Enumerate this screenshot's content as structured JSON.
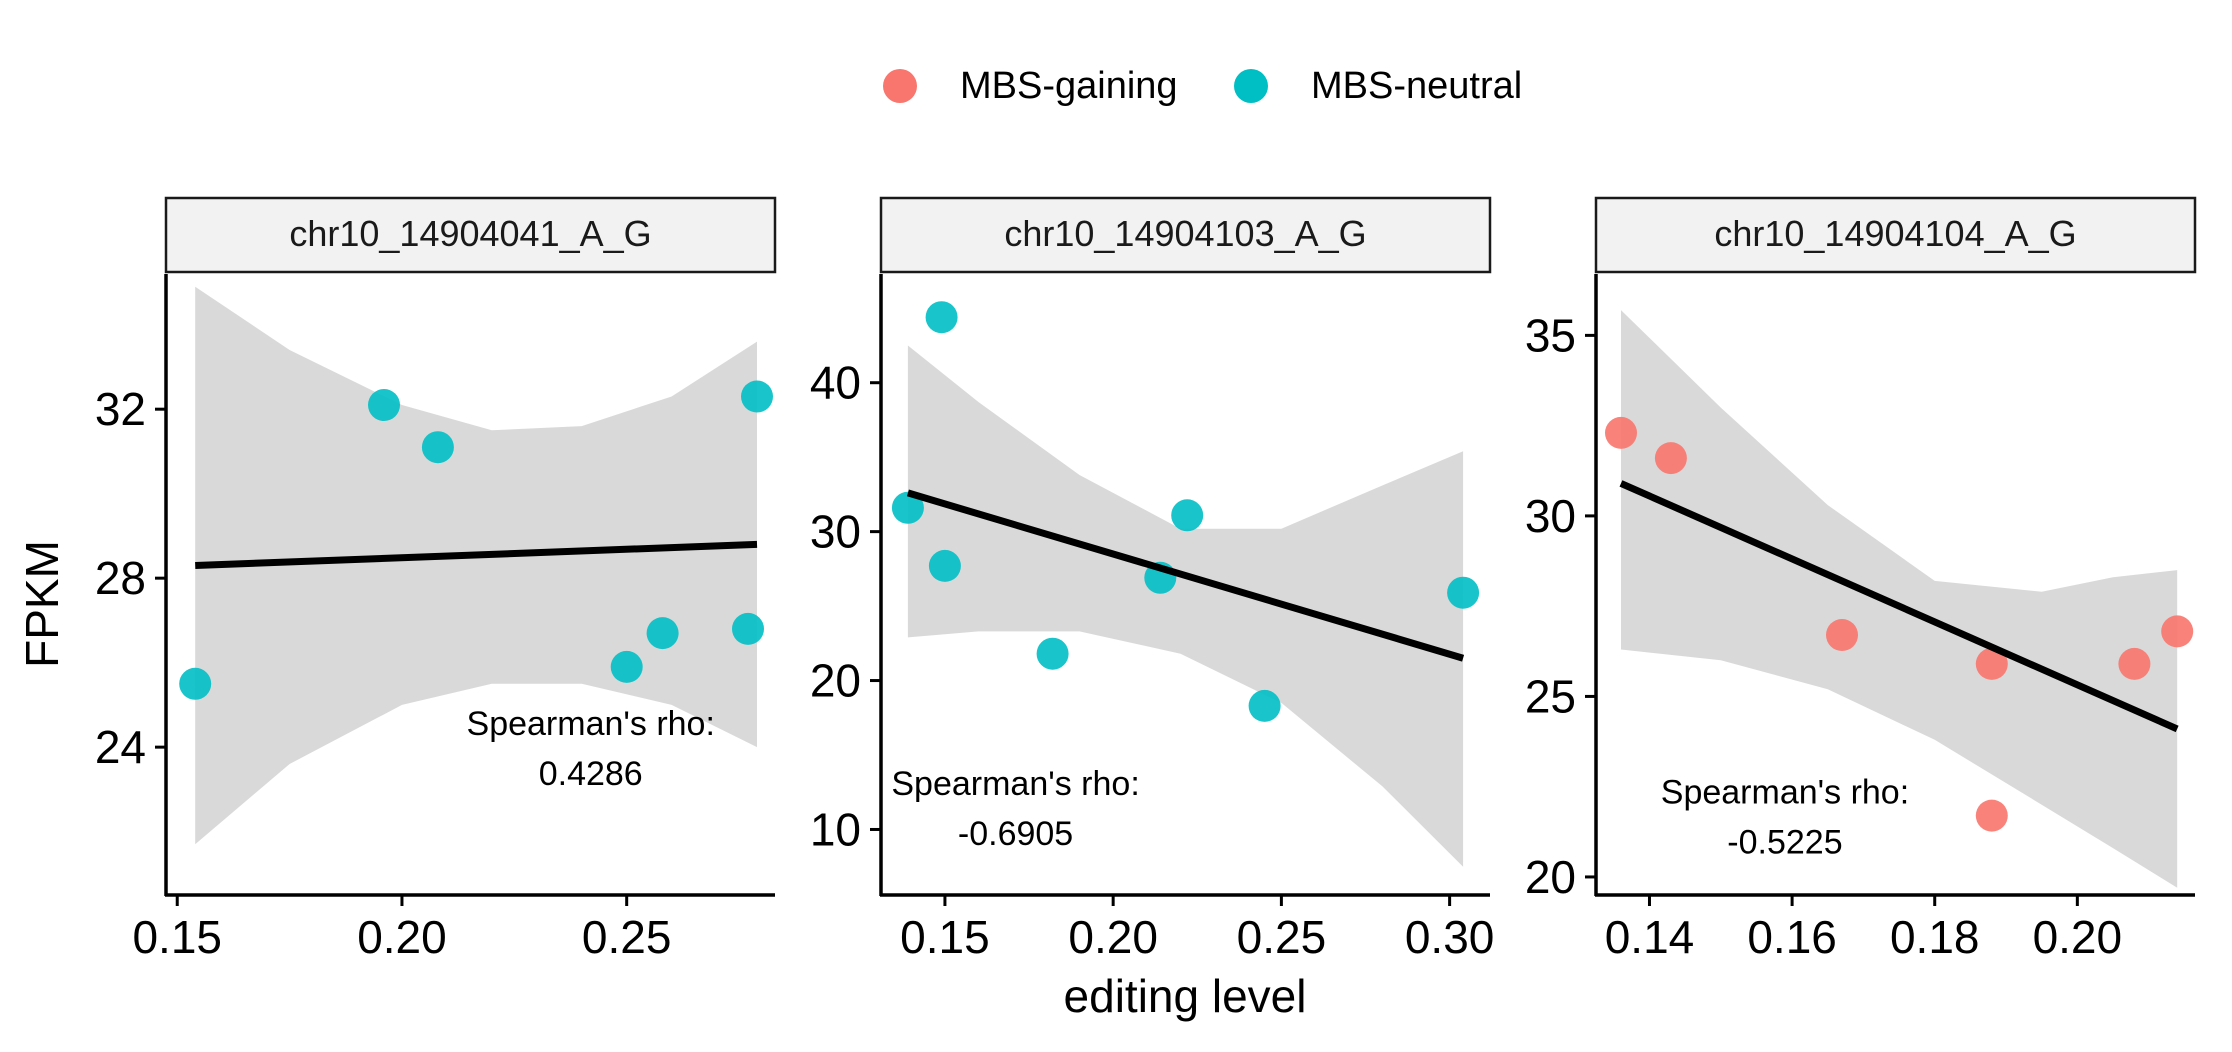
{
  "colors": {
    "mbs_gaining": "#F8766D",
    "mbs_neutral": "#00BFC4",
    "ribbon": "#D9D9D9",
    "strip_fill": "#F2F2F2",
    "fit_line": "#000000"
  },
  "legend": {
    "items": [
      {
        "label": "MBS-gaining",
        "group": "gaining"
      },
      {
        "label": "MBS-neutral",
        "group": "neutral"
      }
    ]
  },
  "axis": {
    "y_title": "FPKM",
    "x_title": "editing level"
  },
  "chart_data": [
    {
      "type": "scatter",
      "title": "chr10_14904041_A_G",
      "xlim": [
        0.1475,
        0.283
      ],
      "ylim": [
        20.5,
        35.2
      ],
      "xticks": [
        0.15,
        0.2,
        0.25
      ],
      "xtick_labels": [
        "0.15",
        "0.20",
        "0.25"
      ],
      "yticks": [
        24,
        28,
        32
      ],
      "ytick_labels": [
        "24",
        "28",
        "32"
      ],
      "points": [
        {
          "x": 0.154,
          "y": 25.5,
          "group": "neutral"
        },
        {
          "x": 0.196,
          "y": 32.1,
          "group": "neutral"
        },
        {
          "x": 0.208,
          "y": 31.1,
          "group": "neutral"
        },
        {
          "x": 0.25,
          "y": 25.9,
          "group": "neutral"
        },
        {
          "x": 0.258,
          "y": 26.7,
          "group": "neutral"
        },
        {
          "x": 0.277,
          "y": 26.8,
          "group": "neutral"
        },
        {
          "x": 0.279,
          "y": 32.3,
          "group": "neutral"
        }
      ],
      "fit": {
        "x": [
          0.154,
          0.279
        ],
        "y": [
          28.3,
          28.8
        ]
      },
      "ci_band": {
        "x": [
          0.154,
          0.175,
          0.2,
          0.22,
          0.24,
          0.26,
          0.279
        ],
        "lower": [
          21.7,
          23.6,
          25.0,
          25.5,
          25.5,
          25.0,
          24.0
        ],
        "upper": [
          34.9,
          33.4,
          32.1,
          31.5,
          31.6,
          32.3,
          33.6
        ]
      },
      "annotation": {
        "label": "Spearman's rho:",
        "value": "0.4286",
        "at": {
          "x": 0.242,
          "y": 24.0
        }
      }
    },
    {
      "type": "scatter",
      "title": "chr10_14904103_A_G",
      "xlim": [
        0.131,
        0.312
      ],
      "ylim": [
        5.6,
        47.3
      ],
      "xticks": [
        0.15,
        0.2,
        0.25,
        0.3
      ],
      "xtick_labels": [
        "0.15",
        "0.20",
        "0.25",
        "0.30"
      ],
      "yticks": [
        10,
        20,
        30,
        40
      ],
      "ytick_labels": [
        "10",
        "20",
        "30",
        "40"
      ],
      "points": [
        {
          "x": 0.139,
          "y": 31.6,
          "group": "neutral"
        },
        {
          "x": 0.149,
          "y": 44.4,
          "group": "neutral"
        },
        {
          "x": 0.15,
          "y": 27.7,
          "group": "neutral"
        },
        {
          "x": 0.182,
          "y": 21.8,
          "group": "neutral"
        },
        {
          "x": 0.214,
          "y": 26.9,
          "group": "neutral"
        },
        {
          "x": 0.222,
          "y": 31.1,
          "group": "neutral"
        },
        {
          "x": 0.245,
          "y": 18.3,
          "group": "neutral"
        },
        {
          "x": 0.304,
          "y": 25.9,
          "group": "neutral"
        }
      ],
      "fit": {
        "x": [
          0.139,
          0.304
        ],
        "y": [
          32.6,
          21.5
        ]
      },
      "ci_band": {
        "x": [
          0.139,
          0.16,
          0.19,
          0.22,
          0.25,
          0.28,
          0.304
        ],
        "lower": [
          22.9,
          23.3,
          23.3,
          21.8,
          18.5,
          12.9,
          7.5
        ],
        "upper": [
          42.5,
          38.7,
          33.8,
          30.2,
          30.2,
          33.1,
          35.4
        ]
      },
      "annotation": {
        "label": "Spearman's rho:",
        "value": "-0.6905",
        "at": {
          "x": 0.171,
          "y": 11.5
        }
      }
    },
    {
      "type": "scatter",
      "title": "chr10_14904104_A_G",
      "xlim": [
        0.1325,
        0.2165
      ],
      "ylim": [
        19.5,
        36.7
      ],
      "xticks": [
        0.14,
        0.16,
        0.18,
        0.2
      ],
      "xtick_labels": [
        "0.14",
        "0.16",
        "0.18",
        "0.20"
      ],
      "yticks": [
        20,
        25,
        30,
        35
      ],
      "ytick_labels": [
        "20",
        "25",
        "30",
        "35"
      ],
      "points": [
        {
          "x": 0.136,
          "y": 32.3,
          "group": "gaining"
        },
        {
          "x": 0.143,
          "y": 31.6,
          "group": "gaining"
        },
        {
          "x": 0.167,
          "y": 26.7,
          "group": "gaining"
        },
        {
          "x": 0.188,
          "y": 25.9,
          "group": "gaining"
        },
        {
          "x": 0.188,
          "y": 21.7,
          "group": "gaining"
        },
        {
          "x": 0.208,
          "y": 25.9,
          "group": "gaining"
        },
        {
          "x": 0.214,
          "y": 26.8,
          "group": "gaining"
        }
      ],
      "fit": {
        "x": [
          0.136,
          0.214
        ],
        "y": [
          30.9,
          24.1
        ]
      },
      "ci_band": {
        "x": [
          0.136,
          0.15,
          0.165,
          0.18,
          0.195,
          0.205,
          0.214
        ],
        "lower": [
          26.3,
          26.0,
          25.2,
          23.8,
          22.0,
          20.8,
          19.7
        ],
        "upper": [
          35.7,
          33.0,
          30.3,
          28.2,
          27.9,
          28.3,
          28.5
        ]
      },
      "annotation": {
        "label": "Spearman's rho:",
        "value": "-0.5225",
        "at": {
          "x": 0.159,
          "y": 21.7
        }
      }
    }
  ]
}
